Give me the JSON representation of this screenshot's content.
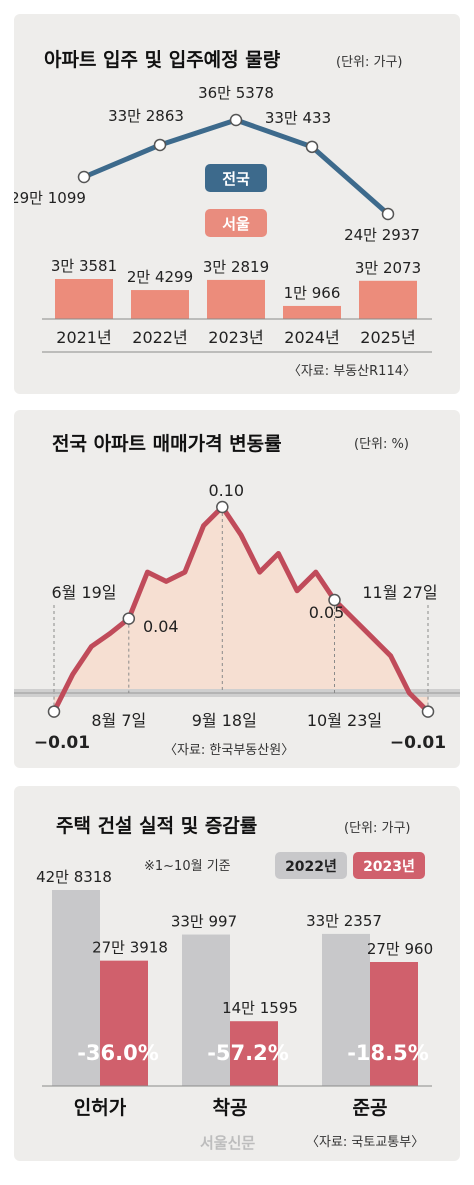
{
  "panel1": {
    "title": "아파트 입주 및 입주예정 물량",
    "unit": "(단위: 가구)",
    "legend_national": "전국",
    "legend_seoul": "서울",
    "source": "〈자료: 부동산R114〉",
    "colors": {
      "national": "#3d6a8c",
      "seoul": "#e98c7e",
      "seoul_bar": "#ec8c7b"
    }
  },
  "panel2": {
    "title": "전국 아파트 매매가격 변동률",
    "unit": "(단위: %)",
    "source": "〈자료: 한국부동산원〉",
    "colors": {
      "line": "#c04b5a",
      "fill": "#f6dfd2"
    }
  },
  "panel3": {
    "title": "주택 건설 실적 및 증감률",
    "unit": "(단위: 가구)",
    "note": "※1~10월 기준",
    "legend_2022": "2022년",
    "legend_2023": "2023년",
    "source": "〈자료: 국토교통부〉",
    "colors": {
      "y2022": "#c8c8ca",
      "y2023": "#d0606c"
    }
  },
  "watermark": "서울신문",
  "chart_data": [
    {
      "type": "line",
      "title": "아파트 입주 및 입주예정 물량",
      "x": [
        "2021년",
        "2022년",
        "2023년",
        "2024년",
        "2025년"
      ],
      "series": [
        {
          "name": "전국",
          "values": [
            291099,
            332863,
            365378,
            330433,
            242937
          ],
          "labels": [
            "29만 1099",
            "33만 2863",
            "36만 5378",
            "33만 433",
            "24만 2937"
          ]
        }
      ]
    },
    {
      "type": "bar",
      "categories": [
        "2021년",
        "2022년",
        "2023년",
        "2024년",
        "2025년"
      ],
      "series": [
        {
          "name": "서울",
          "values": [
            33581,
            24299,
            32819,
            10966,
            32073
          ],
          "labels": [
            "3만 3581",
            "2만 4299",
            "3만 2819",
            "1만 966",
            "3만 2073"
          ]
        }
      ]
    },
    {
      "type": "area",
      "title": "전국 아파트 매매가격 변동률",
      "values": [
        -0.01,
        0.01,
        0.025,
        0.032,
        0.04,
        0.065,
        0.06,
        0.065,
        0.09,
        0.1,
        0.085,
        0.065,
        0.075,
        0.055,
        0.065,
        0.05,
        0.04,
        0.03,
        0.02,
        0.0,
        -0.01
      ],
      "annotations": [
        {
          "index": 0,
          "date": "6월 19일",
          "value": "−0.01"
        },
        {
          "index": 4,
          "date": "8월 7일",
          "value": "0.04"
        },
        {
          "index": 9,
          "date": "9월 18일",
          "value": "0.10"
        },
        {
          "index": 15,
          "date": "10월 23일",
          "value": "0.05"
        },
        {
          "index": 20,
          "date": "11월 27일",
          "value": "−0.01"
        }
      ]
    },
    {
      "type": "bar",
      "title": "주택 건설 실적 및 증감률",
      "categories": [
        "인허가",
        "착공",
        "준공"
      ],
      "series": [
        {
          "name": "2022년",
          "values": [
            428318,
            330997,
            332357
          ],
          "labels": [
            "42만 8318",
            "33만 997",
            "33만 2357"
          ]
        },
        {
          "name": "2023년",
          "values": [
            273918,
            141595,
            270960
          ],
          "labels": [
            "27만 3918",
            "14만 1595",
            "27만 960"
          ]
        }
      ],
      "change": [
        "-36.0%",
        "-57.2%",
        "-18.5%"
      ]
    }
  ]
}
